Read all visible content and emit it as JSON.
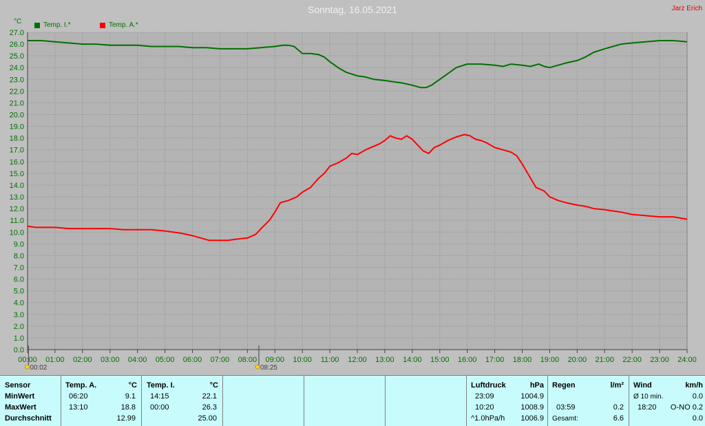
{
  "header": {
    "title": "Sonntag, 16.05.2021",
    "author": "Jarz Erich",
    "unit_label": "°C"
  },
  "colors": {
    "background": "#c0c0c0",
    "plot_background": "#b4b4b4",
    "series_inside": "#007000",
    "series_outside": "#ff0000",
    "axis_text": "#007000",
    "panel_background": "#c8fcfc"
  },
  "chart_data": {
    "type": "line",
    "title": "Sonntag, 16.05.2021",
    "ylabel": "°C",
    "ylim": [
      0,
      27
    ],
    "xlim": [
      0,
      24
    ],
    "grid": true,
    "legend_position": "top-left",
    "y_ticks": [
      "0.0",
      "1.0",
      "2.0",
      "3.0",
      "4.0",
      "5.0",
      "6.0",
      "7.0",
      "8.0",
      "9.0",
      "10.0",
      "11.0",
      "12.0",
      "13.0",
      "14.0",
      "15.0",
      "16.0",
      "17.0",
      "18.0",
      "19.0",
      "20.0",
      "21.0",
      "22.0",
      "23.0",
      "24.0",
      "25.0",
      "26.0",
      "27.0"
    ],
    "x_ticks": [
      "00:00",
      "01:00",
      "02:00",
      "03:00",
      "04:00",
      "05:00",
      "06:00",
      "07:00",
      "08:00",
      "09:00",
      "10:00",
      "11:00",
      "12:00",
      "13:00",
      "14:00",
      "15:00",
      "16:00",
      "17:00",
      "18:00",
      "19:00",
      "20:00",
      "21:00",
      "22:00",
      "23:00",
      "24:00"
    ],
    "x_markers": [
      {
        "label": "00:02",
        "x": 0.033
      },
      {
        "label": "08:25",
        "x": 8.417
      }
    ],
    "series": [
      {
        "name": "Temp. I.*",
        "color": "#007000",
        "points": [
          [
            0.0,
            26.3
          ],
          [
            0.5,
            26.3
          ],
          [
            1.0,
            26.2
          ],
          [
            1.5,
            26.1
          ],
          [
            2.0,
            26.0
          ],
          [
            2.5,
            26.0
          ],
          [
            3.0,
            25.9
          ],
          [
            3.5,
            25.9
          ],
          [
            4.0,
            25.9
          ],
          [
            4.5,
            25.8
          ],
          [
            5.0,
            25.8
          ],
          [
            5.5,
            25.8
          ],
          [
            6.0,
            25.7
          ],
          [
            6.5,
            25.7
          ],
          [
            7.0,
            25.6
          ],
          [
            7.5,
            25.6
          ],
          [
            8.0,
            25.6
          ],
          [
            8.5,
            25.7
          ],
          [
            9.0,
            25.8
          ],
          [
            9.3,
            25.9
          ],
          [
            9.5,
            25.9
          ],
          [
            9.7,
            25.8
          ],
          [
            10.0,
            25.2
          ],
          [
            10.3,
            25.2
          ],
          [
            10.6,
            25.1
          ],
          [
            10.8,
            24.9
          ],
          [
            11.0,
            24.5
          ],
          [
            11.3,
            24.0
          ],
          [
            11.6,
            23.6
          ],
          [
            12.0,
            23.3
          ],
          [
            12.3,
            23.2
          ],
          [
            12.6,
            23.0
          ],
          [
            13.0,
            22.9
          ],
          [
            13.3,
            22.8
          ],
          [
            13.6,
            22.7
          ],
          [
            14.0,
            22.5
          ],
          [
            14.3,
            22.3
          ],
          [
            14.5,
            22.3
          ],
          [
            14.7,
            22.5
          ],
          [
            15.0,
            23.0
          ],
          [
            15.3,
            23.5
          ],
          [
            15.6,
            24.0
          ],
          [
            16.0,
            24.3
          ],
          [
            16.5,
            24.3
          ],
          [
            17.0,
            24.2
          ],
          [
            17.3,
            24.1
          ],
          [
            17.6,
            24.3
          ],
          [
            18.0,
            24.2
          ],
          [
            18.3,
            24.1
          ],
          [
            18.6,
            24.3
          ],
          [
            18.8,
            24.1
          ],
          [
            19.0,
            24.0
          ],
          [
            19.3,
            24.2
          ],
          [
            19.6,
            24.4
          ],
          [
            20.0,
            24.6
          ],
          [
            20.3,
            24.9
          ],
          [
            20.6,
            25.3
          ],
          [
            21.0,
            25.6
          ],
          [
            21.3,
            25.8
          ],
          [
            21.6,
            26.0
          ],
          [
            22.0,
            26.1
          ],
          [
            22.5,
            26.2
          ],
          [
            23.0,
            26.3
          ],
          [
            23.5,
            26.3
          ],
          [
            24.0,
            26.2
          ]
        ]
      },
      {
        "name": "Temp. A.*",
        "color": "#ff0000",
        "points": [
          [
            0.0,
            10.5
          ],
          [
            0.3,
            10.4
          ],
          [
            1.0,
            10.4
          ],
          [
            1.5,
            10.3
          ],
          [
            2.0,
            10.3
          ],
          [
            3.0,
            10.3
          ],
          [
            3.5,
            10.2
          ],
          [
            4.0,
            10.2
          ],
          [
            4.5,
            10.2
          ],
          [
            5.0,
            10.1
          ],
          [
            5.3,
            10.0
          ],
          [
            5.6,
            9.9
          ],
          [
            6.0,
            9.7
          ],
          [
            6.3,
            9.5
          ],
          [
            6.6,
            9.3
          ],
          [
            7.0,
            9.3
          ],
          [
            7.3,
            9.3
          ],
          [
            7.6,
            9.4
          ],
          [
            8.0,
            9.5
          ],
          [
            8.3,
            9.8
          ],
          [
            8.5,
            10.3
          ],
          [
            8.8,
            11.0
          ],
          [
            9.0,
            11.7
          ],
          [
            9.2,
            12.5
          ],
          [
            9.5,
            12.7
          ],
          [
            9.8,
            13.0
          ],
          [
            10.0,
            13.4
          ],
          [
            10.3,
            13.8
          ],
          [
            10.6,
            14.6
          ],
          [
            10.8,
            15.0
          ],
          [
            11.0,
            15.6
          ],
          [
            11.3,
            15.9
          ],
          [
            11.6,
            16.3
          ],
          [
            11.8,
            16.7
          ],
          [
            12.0,
            16.6
          ],
          [
            12.3,
            17.0
          ],
          [
            12.6,
            17.3
          ],
          [
            12.8,
            17.5
          ],
          [
            13.0,
            17.8
          ],
          [
            13.2,
            18.2
          ],
          [
            13.4,
            18.0
          ],
          [
            13.6,
            17.9
          ],
          [
            13.8,
            18.2
          ],
          [
            14.0,
            17.9
          ],
          [
            14.2,
            17.4
          ],
          [
            14.4,
            16.9
          ],
          [
            14.6,
            16.7
          ],
          [
            14.8,
            17.2
          ],
          [
            15.0,
            17.4
          ],
          [
            15.3,
            17.8
          ],
          [
            15.6,
            18.1
          ],
          [
            15.9,
            18.3
          ],
          [
            16.1,
            18.2
          ],
          [
            16.3,
            17.9
          ],
          [
            16.5,
            17.8
          ],
          [
            16.7,
            17.6
          ],
          [
            17.0,
            17.2
          ],
          [
            17.3,
            17.0
          ],
          [
            17.6,
            16.8
          ],
          [
            17.8,
            16.5
          ],
          [
            18.0,
            15.8
          ],
          [
            18.3,
            14.6
          ],
          [
            18.5,
            13.8
          ],
          [
            18.8,
            13.5
          ],
          [
            19.0,
            13.0
          ],
          [
            19.3,
            12.7
          ],
          [
            19.6,
            12.5
          ],
          [
            20.0,
            12.3
          ],
          [
            20.3,
            12.2
          ],
          [
            20.6,
            12.0
          ],
          [
            21.0,
            11.9
          ],
          [
            21.3,
            11.8
          ],
          [
            21.6,
            11.7
          ],
          [
            22.0,
            11.5
          ],
          [
            22.5,
            11.4
          ],
          [
            23.0,
            11.3
          ],
          [
            23.5,
            11.3
          ],
          [
            24.0,
            11.1
          ]
        ]
      }
    ]
  },
  "legend": [
    {
      "label": "Temp. I.*",
      "color": "#007000"
    },
    {
      "label": "Temp. A.*",
      "color": "#ff0000"
    }
  ],
  "table": {
    "sensor": {
      "header": "Sensor",
      "min": "MinWert",
      "max": "MaxWert",
      "avg": "Durchschnitt"
    },
    "temp_a": {
      "header": "Temp. A.",
      "unit": "°C",
      "min_time": "06:20",
      "min_val": "9.1",
      "max_time": "13:10",
      "max_val": "18.8",
      "avg_val": "12.99"
    },
    "temp_i": {
      "header": "Temp. I.",
      "unit": "°C",
      "min_time": "14:15",
      "min_val": "22.1",
      "max_time": "00:00",
      "max_val": "26.3",
      "avg_val": "25.00"
    },
    "pressure": {
      "header": "Luftdruck",
      "unit": "hPa",
      "min_time": "23:09",
      "min_val": "1004.9",
      "max_time": "10:20",
      "max_val": "1008.9",
      "trend_label": "^1.0hPa/h",
      "trend_val": "1006.9"
    },
    "rain": {
      "header": "Regen",
      "unit": "l/m²",
      "row2_time": "03:59",
      "row2_val": "0.2",
      "total_label": "Gesamt:",
      "total_val": "6.6"
    },
    "wind": {
      "header": "Wind",
      "unit": "km/h",
      "row1_label": "Ø 10 min.",
      "row1_val": "0.0",
      "row2_time": "18:20",
      "row2_val": "O-NO 0.2",
      "row3_val": "0.0"
    }
  }
}
